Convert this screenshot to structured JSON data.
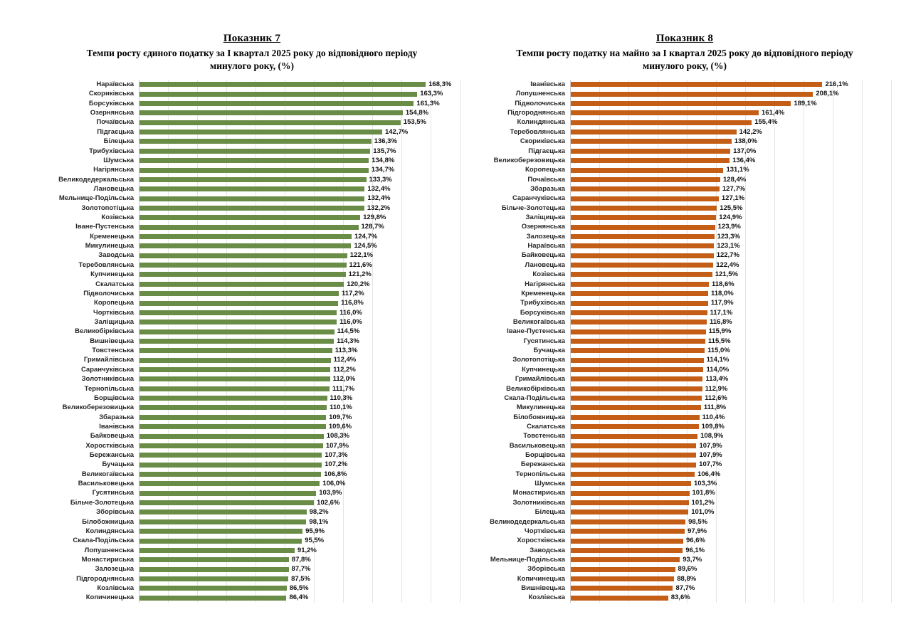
{
  "chart_data": [
    {
      "type": "bar",
      "orientation": "horizontal",
      "title": "Показник 7",
      "subtitle": "Темпи росту єдиного податку за І квартал 2025 року до відповідного періоду минулого року, (%)",
      "bar_color": "#698c46",
      "value_suffix": "%",
      "decimal_separator": ",",
      "axis_max": 190,
      "grid": true,
      "legend": false,
      "categories": [
        "Нараївська",
        "Скориківська",
        "Борсуківська",
        "Озернянська",
        "Почаївська",
        "Підгаєцька",
        "Білецька",
        "Трибухівська",
        "Шумська",
        "Нагірянська",
        "Великодедеркальська",
        "Лановецька",
        "Мельнице-Подільська",
        "Золотопотіцька",
        "Козівська",
        "Іване-Пустенська",
        "Кременецька",
        "Микулинецька",
        "Заводська",
        "Теребовлянська",
        "Купчинецька",
        "Скалатська",
        "Підволочиська",
        "Коропецька",
        "Чортківська",
        "Заліщицька",
        "Великобірківська",
        "Вишнівецька",
        "Товстенська",
        "Гримайлівська",
        "Саранчуківська",
        "Золотниківська",
        "Тернопільська",
        "Борщівська",
        "Великоберезовицька",
        "Збаразька",
        "Іванівська",
        "Байковецька",
        "Хоростківська",
        "Бережанська",
        "Бучацька",
        "Великогаївська",
        "Васильковецька",
        "Гусятинська",
        "Більче-Золотецька",
        "Зборівська",
        "Білобожницька",
        "Колиндянська",
        "Скала-Подільська",
        "Лопушненська",
        "Монастириська",
        "Залозецька",
        "Підгороднянська",
        "Козлівська",
        "Копичинецька"
      ],
      "values": [
        168.3,
        163.3,
        161.3,
        154.8,
        153.5,
        142.7,
        136.3,
        135.7,
        134.8,
        134.7,
        133.3,
        132.4,
        132.4,
        132.2,
        129.8,
        128.7,
        124.7,
        124.5,
        122.1,
        121.6,
        121.2,
        120.2,
        117.2,
        116.8,
        116.0,
        116.0,
        114.5,
        114.3,
        113.3,
        112.4,
        112.2,
        112.0,
        111.7,
        110.3,
        110.1,
        109.7,
        109.6,
        108.3,
        107.9,
        107.3,
        107.2,
        106.8,
        106.0,
        103.9,
        102.6,
        98.2,
        98.1,
        95.9,
        95.5,
        91.2,
        87.8,
        87.7,
        87.5,
        86.5,
        86.4
      ]
    },
    {
      "type": "bar",
      "orientation": "horizontal",
      "title": "Показник 8",
      "subtitle": "Темпи росту податку на майно за І квартал 2025 року до відповідного періоду минулого року, (%)",
      "bar_color": "#c45d15",
      "value_suffix": "%",
      "decimal_separator": ",",
      "axis_max": 280,
      "grid": true,
      "legend": false,
      "categories": [
        "Іванівська",
        "Лопушненська",
        "Підволочиська",
        "Підгороднянська",
        "Колиндянська",
        "Теребовлянська",
        "Скориківська",
        "Підгаєцька",
        "Великоберезовицька",
        "Коропецька",
        "Почаївська",
        "Збаразька",
        "Саранчуківська",
        "Більче-Золотецька",
        "Заліщицька",
        "Озернянська",
        "Залозецька",
        "Нараївська",
        "Байковецька",
        "Лановецька",
        "Козівська",
        "Нагірянська",
        "Кременецька",
        "Трибухівська",
        "Борсуківська",
        "Великогаївська",
        "Іване-Пустенська",
        "Гусятинська",
        "Бучацька",
        "Золотопотіцька",
        "Купчинецька",
        "Гримайлівська",
        "Великобірківська",
        "Скала-Подільська",
        "Микулинецька",
        "Білобожницька",
        "Скалатська",
        "Товстенська",
        "Васильковецька",
        "Борщівська",
        "Бережанська",
        "Тернопільська",
        "Шумська",
        "Монастириська",
        "Золотниківська",
        "Білецька",
        "Великодедеркальська",
        "Чортківська",
        "Хоростківська",
        "Заводська",
        "Мельнице-Подільська",
        "Зборівська",
        "Копичинецька",
        "Вишнівецька",
        "Козлівська"
      ],
      "values": [
        216.1,
        208.1,
        189.1,
        161.4,
        155.4,
        142.2,
        138.0,
        137.0,
        136.4,
        131.1,
        128.4,
        127.7,
        127.1,
        125.5,
        124.9,
        123.9,
        123.3,
        123.1,
        122.7,
        122.4,
        121.5,
        118.6,
        118.0,
        117.9,
        117.1,
        116.8,
        115.9,
        115.5,
        115.0,
        114.1,
        114.0,
        113.4,
        112.9,
        112.6,
        111.8,
        110.4,
        109.8,
        108.9,
        107.9,
        107.9,
        107.7,
        106.4,
        103.3,
        101.8,
        101.2,
        101.0,
        98.5,
        97.9,
        96.6,
        96.1,
        93.7,
        89.6,
        88.8,
        87.7,
        83.6
      ]
    }
  ]
}
